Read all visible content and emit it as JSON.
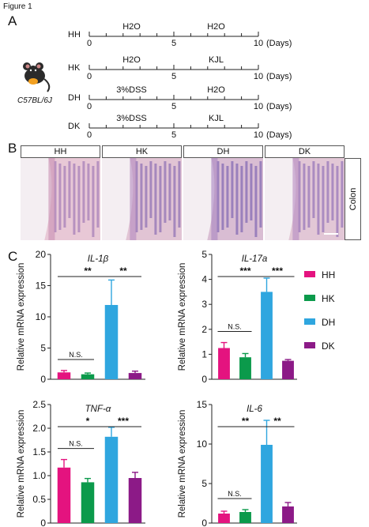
{
  "figure_label": "Figure 1",
  "panels": {
    "a": "A",
    "b": "B",
    "c": "C"
  },
  "timeline": {
    "mouse_strain": "C57BL/6J",
    "days_unit": "(Days)",
    "ticks": [
      "0",
      "5",
      "10"
    ],
    "rows": [
      {
        "group": "HH",
        "phase1": "H2O",
        "phase2": "H2O"
      },
      {
        "group": "HK",
        "phase1": "H2O",
        "phase2": "KJL"
      },
      {
        "group": "DH",
        "phase1": "3%DSS",
        "phase2": "H2O"
      },
      {
        "group": "DK",
        "phase1": "3%DSS",
        "phase2": "KJL"
      }
    ]
  },
  "histology": {
    "groups": [
      "HH",
      "HK",
      "DH",
      "DK"
    ],
    "tissue": "Colon"
  },
  "legend": [
    {
      "name": "HH",
      "color": "#e4137f"
    },
    {
      "name": "HK",
      "color": "#0b9a4b"
    },
    {
      "name": "DH",
      "color": "#2fa6df"
    },
    {
      "name": "DK",
      "color": "#8c1a87"
    }
  ],
  "chart_data": [
    {
      "type": "bar",
      "title": "IL-1β",
      "ylabel": "Relative mRNA expression",
      "categories": [
        "HH",
        "HK",
        "DH",
        "DK"
      ],
      "values": [
        1.1,
        0.8,
        11.9,
        1.0
      ],
      "errors": [
        0.3,
        0.2,
        4.0,
        0.3
      ],
      "ylim": [
        0,
        20
      ],
      "yticks": [
        "0",
        "5",
        "10",
        "15",
        "20"
      ],
      "significance": [
        {
          "from": 0,
          "to": 2,
          "label": "**"
        },
        {
          "from": 2,
          "to": 3,
          "label": "**"
        },
        {
          "from": 0,
          "to": 1,
          "label": "N.S."
        }
      ]
    },
    {
      "type": "bar",
      "title": "IL-17a",
      "ylabel": "Relative mRNA expression",
      "categories": [
        "HH",
        "HK",
        "DH",
        "DK"
      ],
      "values": [
        1.25,
        0.88,
        3.5,
        0.74
      ],
      "errors": [
        0.22,
        0.15,
        0.55,
        0.05
      ],
      "ylim": [
        0,
        5
      ],
      "yticks": [
        "0",
        "1",
        "2",
        "3",
        "4",
        "5"
      ],
      "significance": [
        {
          "from": 0,
          "to": 2,
          "label": "***"
        },
        {
          "from": 2,
          "to": 3,
          "label": "***"
        },
        {
          "from": 0,
          "to": 1,
          "label": "N.S."
        }
      ]
    },
    {
      "type": "bar",
      "title": "TNF-α",
      "ylabel": "Relative mRNA expression",
      "categories": [
        "HH",
        "HK",
        "DH",
        "DK"
      ],
      "values": [
        1.17,
        0.86,
        1.82,
        0.95
      ],
      "errors": [
        0.17,
        0.08,
        0.2,
        0.12
      ],
      "ylim": [
        0,
        2.5
      ],
      "yticks": [
        "0",
        "0.5",
        "1.0",
        "1.5",
        "2.0",
        "2.5"
      ],
      "significance": [
        {
          "from": 0,
          "to": 2,
          "label": "*"
        },
        {
          "from": 2,
          "to": 3,
          "label": "***"
        },
        {
          "from": 0,
          "to": 1,
          "label": "N.S."
        }
      ]
    },
    {
      "type": "bar",
      "title": "IL-6",
      "ylabel": "Relative mRNA expression",
      "categories": [
        "HH",
        "HK",
        "DH",
        "DK"
      ],
      "values": [
        1.2,
        1.4,
        9.9,
        2.1
      ],
      "errors": [
        0.3,
        0.3,
        3.1,
        0.5
      ],
      "ylim": [
        0,
        15
      ],
      "yticks": [
        "0",
        "5",
        "10",
        "15"
      ],
      "significance": [
        {
          "from": 0,
          "to": 2,
          "label": "**"
        },
        {
          "from": 2,
          "to": 3,
          "label": "**"
        },
        {
          "from": 0,
          "to": 1,
          "label": "N.S."
        }
      ]
    }
  ]
}
